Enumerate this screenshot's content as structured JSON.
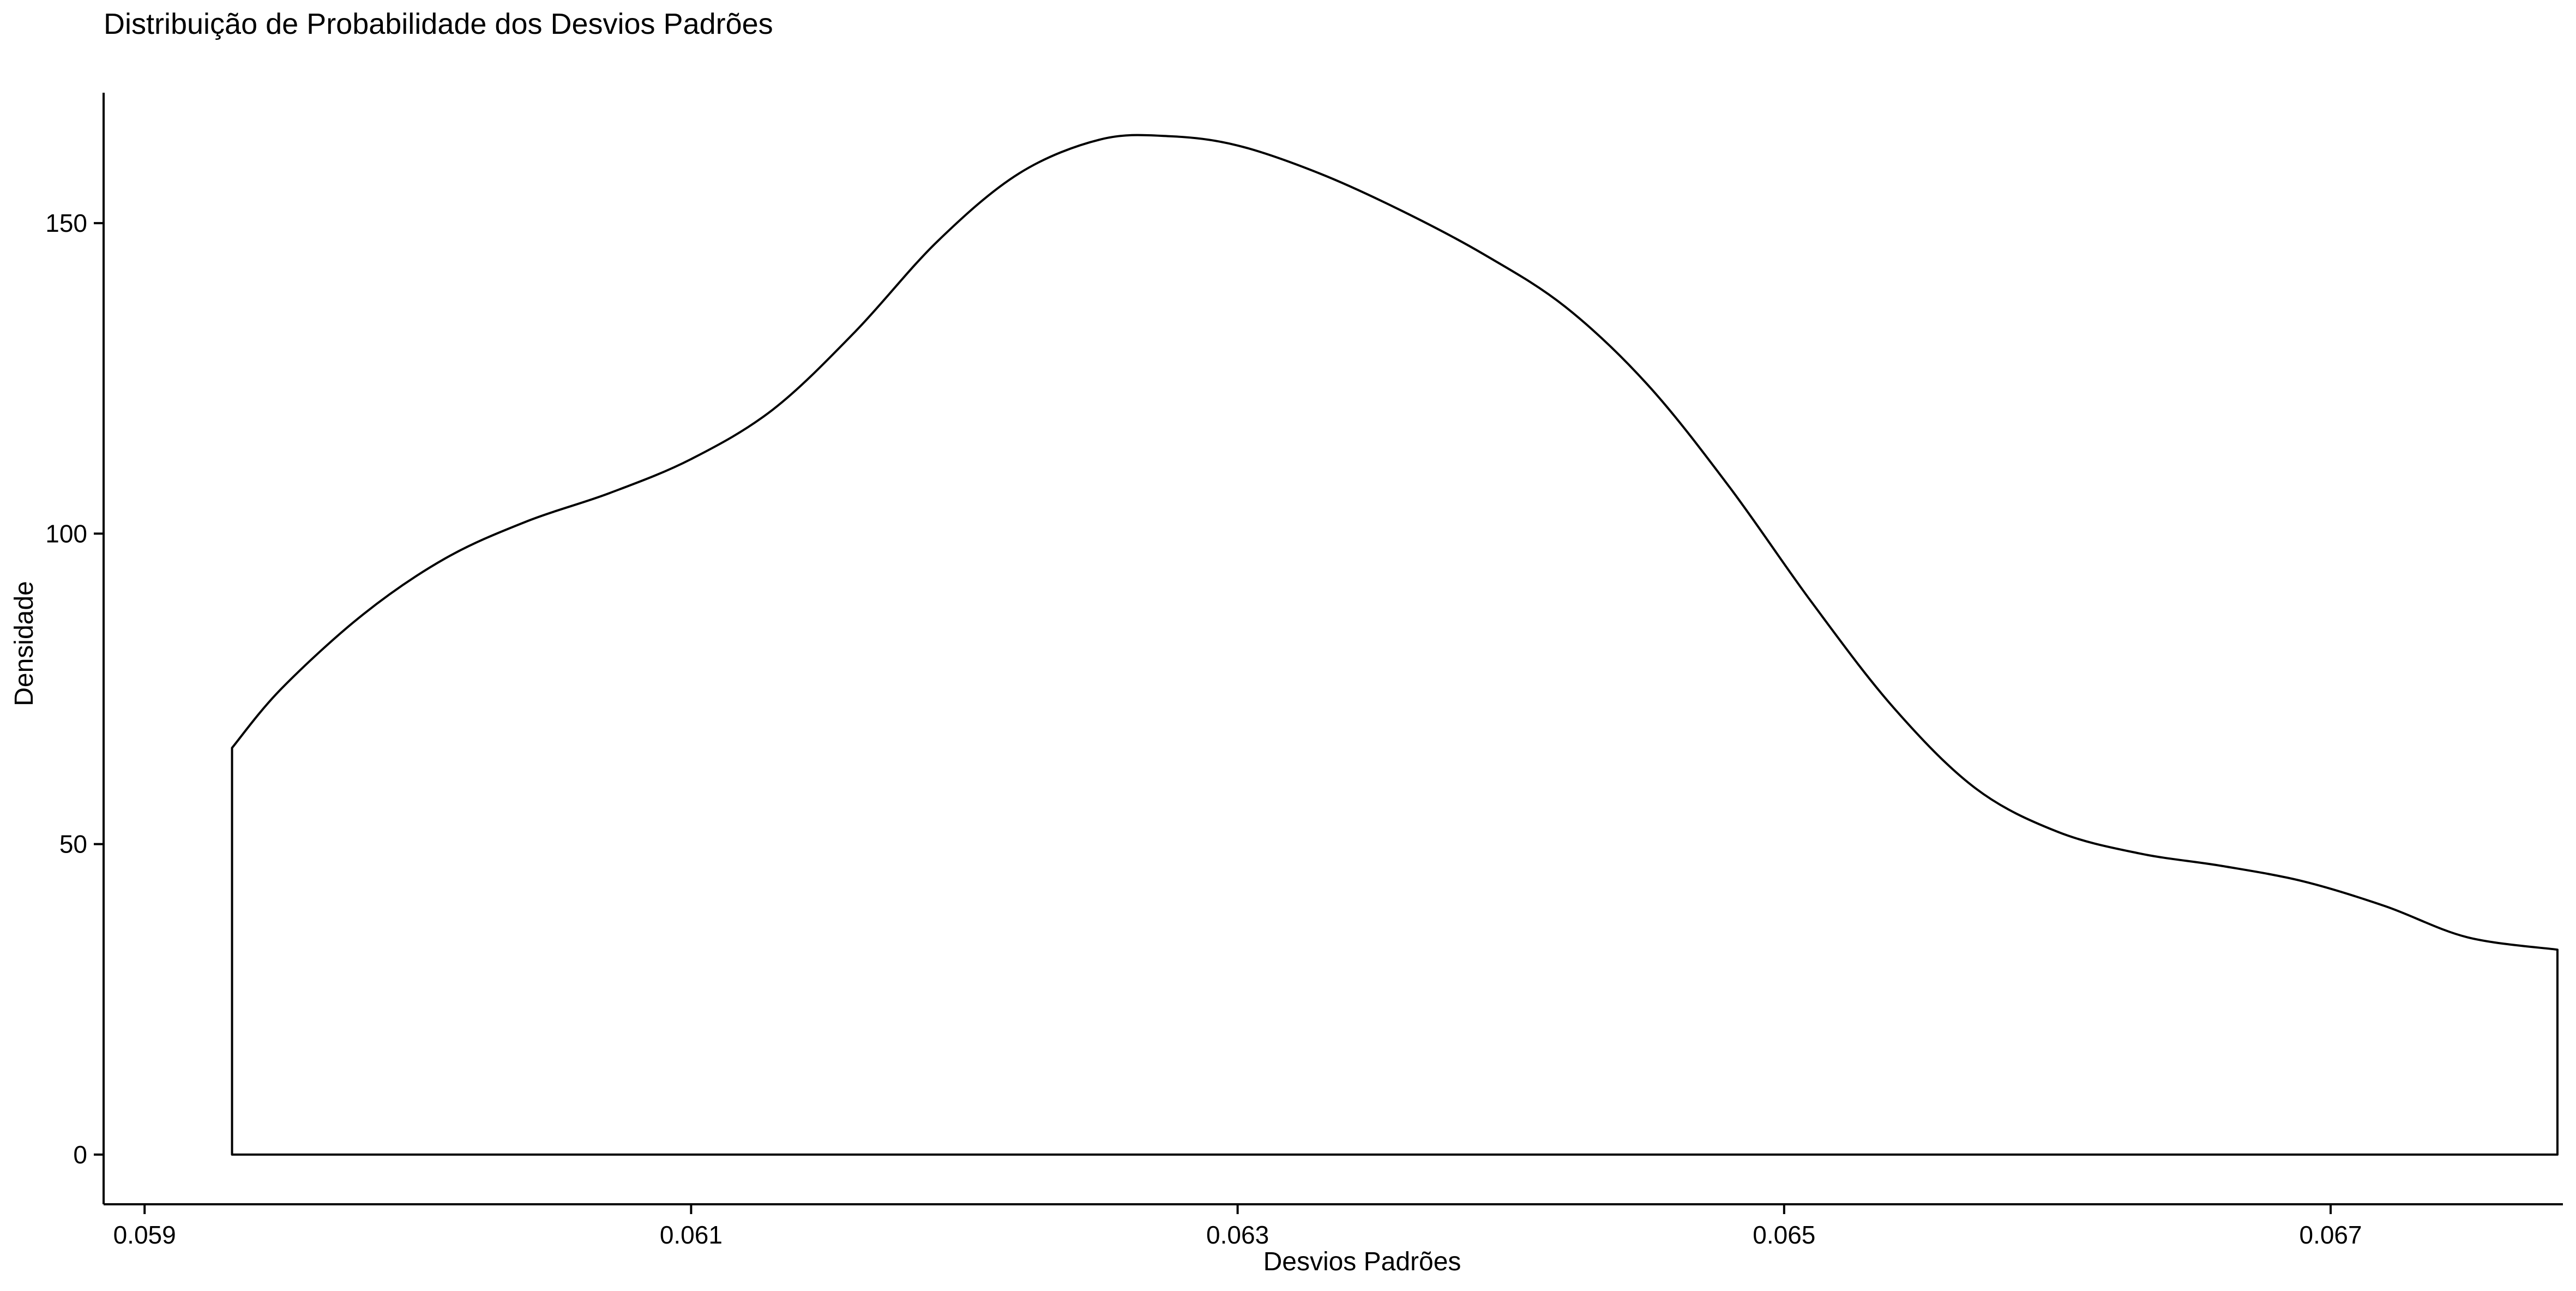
{
  "chart_data": {
    "type": "area",
    "title": "Distribuição de Probabilidade dos Desvios Padrões",
    "xlabel": "Desvios Padrões",
    "ylabel": "Densidade",
    "xlim": [
      0.05885,
      0.06785
    ],
    "ylim": [
      -8,
      171
    ],
    "x_ticks": [
      0.059,
      0.061,
      0.063,
      0.065,
      0.067
    ],
    "x_tick_labels": [
      "0.059",
      "0.061",
      "0.063",
      "0.065",
      "0.067"
    ],
    "y_ticks": [
      0,
      50,
      100,
      150
    ],
    "y_tick_labels": [
      "0",
      "50",
      "100",
      "150"
    ],
    "grid": false,
    "legend": "none",
    "fill_color": "#ffffff",
    "line_color": "#000000",
    "series": [
      {
        "x": [
          0.05932,
          0.0595,
          0.0598,
          0.0601,
          0.0604,
          0.0607,
          0.061,
          0.0613,
          0.0616,
          0.0619,
          0.0622,
          0.0625,
          0.06275,
          0.063,
          0.0633,
          0.0636,
          0.0639,
          0.0642,
          0.0645,
          0.0648,
          0.0651,
          0.0654,
          0.0657,
          0.066,
          0.0663,
          0.0666,
          0.0669,
          0.0672,
          0.0675,
          0.06783
        ],
        "y": [
          65.5,
          75,
          87,
          96,
          102,
          106.5,
          112,
          120,
          132.5,
          147,
          158,
          163.5,
          164,
          162.5,
          158,
          152,
          145,
          136.5,
          124,
          107.5,
          89,
          72,
          59,
          52,
          48.5,
          46.5,
          44,
          40,
          35,
          33
        ]
      }
    ]
  }
}
